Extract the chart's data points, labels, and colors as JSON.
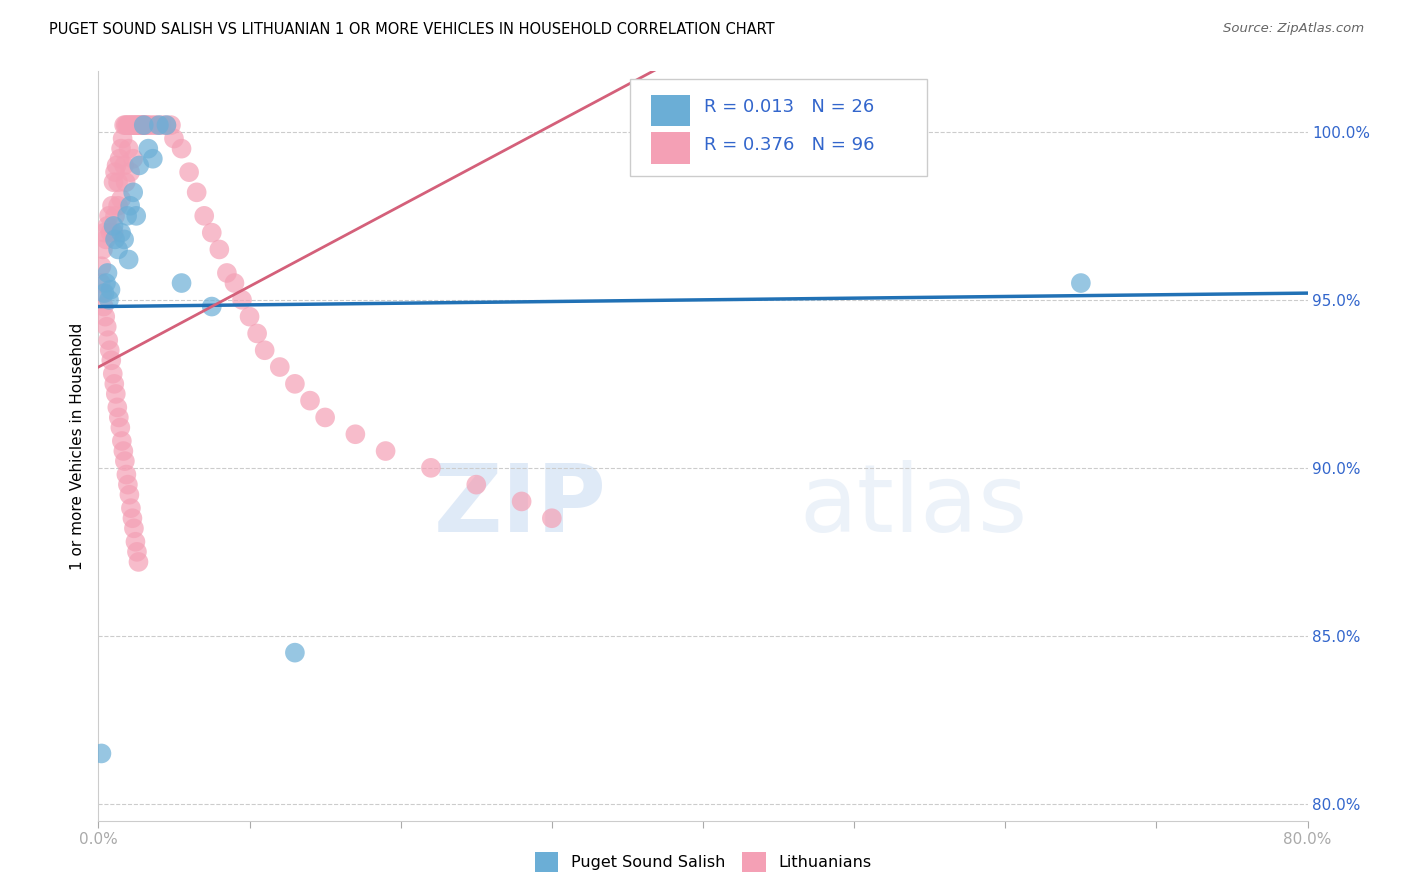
{
  "title": "PUGET SOUND SALISH VS LITHUANIAN 1 OR MORE VEHICLES IN HOUSEHOLD CORRELATION CHART",
  "source": "Source: ZipAtlas.com",
  "ylabel": "1 or more Vehicles in Household",
  "xlim": [
    0.0,
    80.0
  ],
  "ylim": [
    79.5,
    101.8
  ],
  "yticks": [
    80.0,
    85.0,
    90.0,
    95.0,
    100.0
  ],
  "xticks": [
    0.0,
    10.0,
    20.0,
    30.0,
    40.0,
    50.0,
    60.0,
    70.0,
    80.0
  ],
  "legend_blue_label": "Puget Sound Salish",
  "legend_pink_label": "Lithuanians",
  "blue_color": "#6baed6",
  "pink_color": "#f4a0b5",
  "blue_line_color": "#2171b5",
  "pink_line_color": "#d4607a",
  "watermark_zip": "ZIP",
  "watermark_atlas": "atlas",
  "blue_points_x": [
    0.2,
    0.4,
    0.5,
    0.6,
    0.7,
    0.8,
    1.0,
    1.1,
    1.3,
    1.5,
    1.7,
    1.9,
    2.0,
    2.1,
    2.3,
    2.5,
    2.7,
    3.0,
    3.3,
    3.6,
    4.0,
    4.5,
    5.5,
    7.5,
    13.0,
    65.0
  ],
  "blue_points_y": [
    81.5,
    95.2,
    95.5,
    95.8,
    95.0,
    95.3,
    97.2,
    96.8,
    96.5,
    97.0,
    96.8,
    97.5,
    96.2,
    97.8,
    98.2,
    97.5,
    99.0,
    100.2,
    99.5,
    99.2,
    100.2,
    100.2,
    95.5,
    94.8,
    84.5,
    95.5
  ],
  "pink_points_x": [
    0.2,
    0.3,
    0.4,
    0.5,
    0.6,
    0.7,
    0.8,
    0.9,
    1.0,
    1.0,
    1.1,
    1.1,
    1.2,
    1.3,
    1.3,
    1.4,
    1.5,
    1.5,
    1.6,
    1.7,
    1.7,
    1.8,
    1.8,
    1.9,
    2.0,
    2.0,
    2.1,
    2.1,
    2.2,
    2.3,
    2.3,
    2.4,
    2.5,
    2.6,
    2.7,
    2.8,
    2.9,
    3.0,
    3.1,
    3.2,
    3.3,
    3.5,
    3.7,
    3.9,
    4.2,
    4.5,
    4.8,
    5.0,
    5.5,
    6.0,
    6.5,
    7.0,
    7.5,
    8.0,
    8.5,
    9.0,
    9.5,
    10.0,
    10.5,
    11.0,
    12.0,
    13.0,
    14.0,
    15.0,
    17.0,
    19.0,
    22.0,
    25.0,
    28.0,
    30.0,
    0.15,
    0.25,
    0.35,
    0.45,
    0.55,
    0.65,
    0.75,
    0.85,
    0.95,
    1.05,
    1.15,
    1.25,
    1.35,
    1.45,
    1.55,
    1.65,
    1.75,
    1.85,
    1.95,
    2.05,
    2.15,
    2.25,
    2.35,
    2.45,
    2.55,
    2.65
  ],
  "pink_points_y": [
    96.0,
    96.5,
    97.0,
    96.8,
    97.2,
    97.5,
    97.0,
    97.8,
    98.5,
    97.0,
    98.8,
    97.5,
    99.0,
    98.5,
    97.8,
    99.2,
    99.5,
    98.0,
    99.8,
    100.2,
    99.0,
    100.2,
    98.5,
    100.2,
    100.2,
    99.5,
    100.2,
    98.8,
    100.2,
    100.2,
    99.2,
    100.2,
    100.2,
    100.2,
    100.2,
    100.2,
    100.2,
    100.2,
    100.2,
    100.2,
    100.2,
    100.2,
    100.2,
    100.2,
    100.2,
    100.2,
    100.2,
    99.8,
    99.5,
    98.8,
    98.2,
    97.5,
    97.0,
    96.5,
    95.8,
    95.5,
    95.0,
    94.5,
    94.0,
    93.5,
    93.0,
    92.5,
    92.0,
    91.5,
    91.0,
    90.5,
    90.0,
    89.5,
    89.0,
    88.5,
    95.5,
    95.2,
    94.8,
    94.5,
    94.2,
    93.8,
    93.5,
    93.2,
    92.8,
    92.5,
    92.2,
    91.8,
    91.5,
    91.2,
    90.8,
    90.5,
    90.2,
    89.8,
    89.5,
    89.2,
    88.8,
    88.5,
    88.2,
    87.8,
    87.5,
    87.2
  ]
}
